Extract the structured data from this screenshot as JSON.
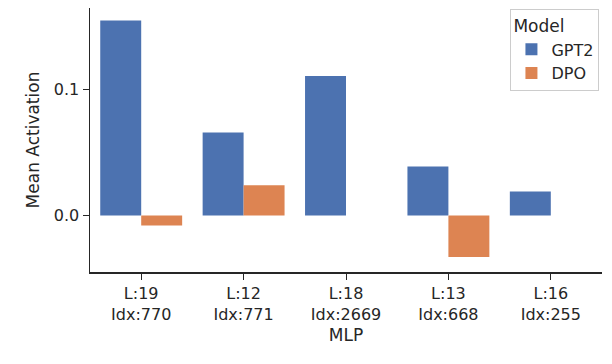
{
  "chart_data": {
    "type": "bar",
    "x_label": "MLP",
    "y_label": "Mean Activation",
    "categories": [
      "L:19\nIdx:770",
      "L:12\nIdx:771",
      "L:18\nIdx:2669",
      "L:13\nIdx:668",
      "L:16\nIdx:255"
    ],
    "series": [
      {
        "name": "GPT2",
        "color": "#4c72b0",
        "values": [
          0.155,
          0.066,
          0.111,
          0.039,
          0.019
        ]
      },
      {
        "name": "DPO",
        "color": "#dd8452",
        "values": [
          -0.008,
          0.024,
          0,
          -0.033,
          0
        ]
      }
    ],
    "ylim": [
      -0.045,
      0.165
    ],
    "yticks": [
      {
        "value": 0,
        "label": "0.0"
      },
      0.1
    ],
    "grid": false,
    "legend": "upper right",
    "legend_title": "Model"
  }
}
